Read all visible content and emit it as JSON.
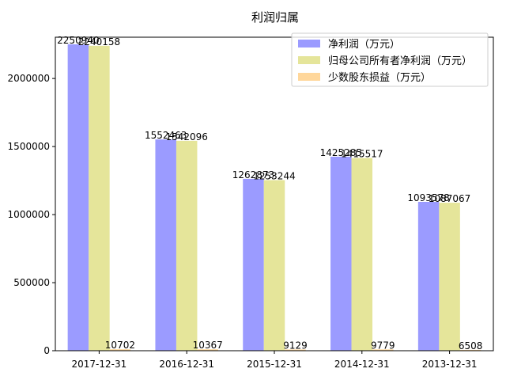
{
  "chart_data": {
    "type": "bar",
    "title": "利润归属",
    "xlabel": "",
    "ylabel": "",
    "categories": [
      "2017-12-31",
      "2016-12-31",
      "2015-12-31",
      "2014-12-31",
      "2013-12-31"
    ],
    "series": [
      {
        "name": "净利润（万元）",
        "color": "#9b9bff",
        "values": [
          2250940,
          1552463,
          1262873,
          1425285,
          1093578
        ],
        "labels": [
          "2250940",
          "1552463",
          "1262873",
          "1425285",
          "1093578"
        ]
      },
      {
        "name": "归母公司所有者净利润（万元）",
        "color": "#e5e59a",
        "values": [
          2240158,
          1542096,
          1253244,
          1415517,
          1087067
        ],
        "labels": [
          "2240158",
          "1542096",
          "1253244",
          "1415517",
          "1087067"
        ]
      },
      {
        "name": "少数股东损益（万元）",
        "color": "#ffd79b",
        "values": [
          10702,
          10367,
          9129,
          9779,
          6508
        ],
        "labels": [
          "10702",
          "10367",
          "9129",
          "9779",
          "6508"
        ]
      }
    ],
    "y_ticks": [
      0,
      500000,
      1000000,
      1500000,
      2000000
    ],
    "y_tick_labels": [
      "0",
      "500000",
      "1000000",
      "1500000",
      "2000000"
    ],
    "ylim": [
      0,
      2250940
    ],
    "grid": false,
    "legend_position": "top-right"
  }
}
